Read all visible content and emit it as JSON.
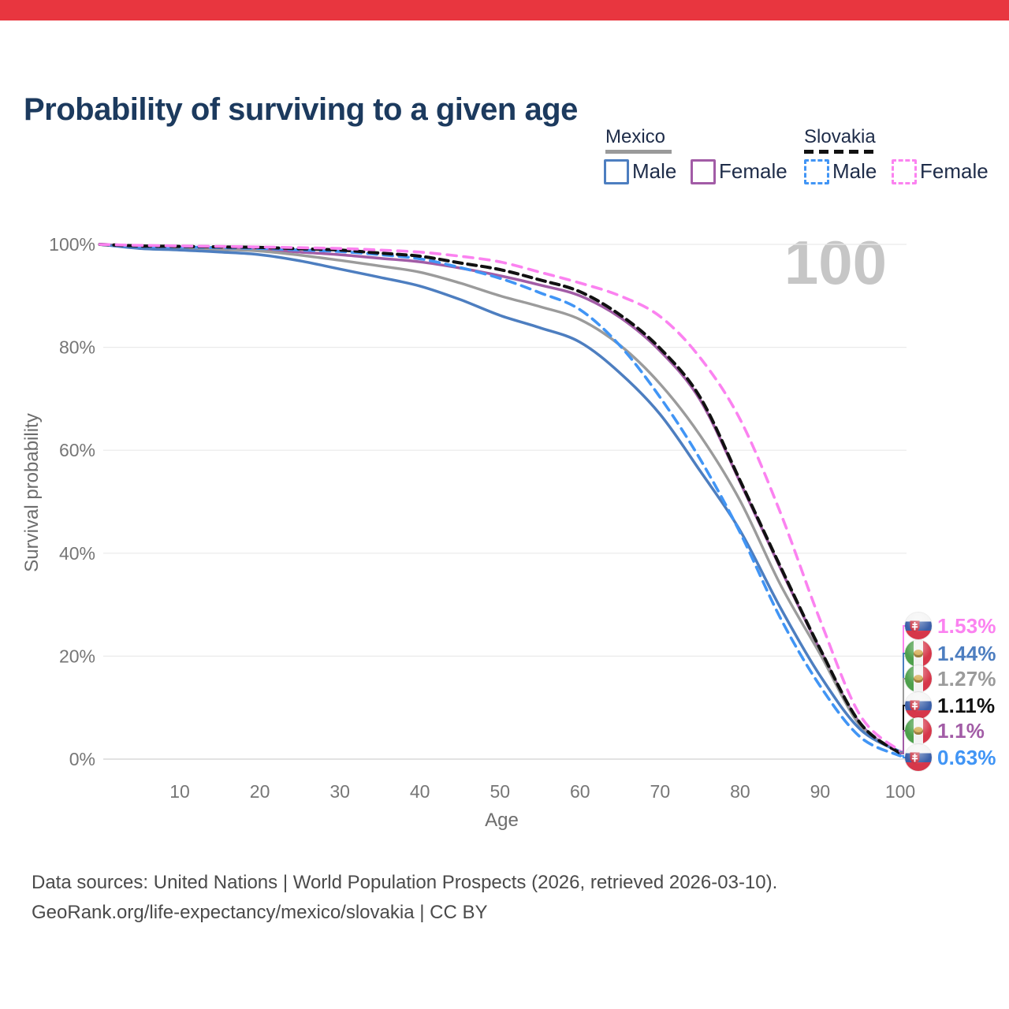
{
  "banner": {
    "color": "#e8363f"
  },
  "title": "Probability of surviving to a given age",
  "watermark": "100",
  "legend": {
    "groups": [
      {
        "country": "Mexico",
        "line_style": "solid",
        "swatch_color": "#9a9a9a",
        "items": [
          {
            "label": "Male",
            "color": "#4d7ec0",
            "dashed": false
          },
          {
            "label": "Female",
            "color": "#a25ca6",
            "dashed": false
          }
        ]
      },
      {
        "country": "Slovakia",
        "line_style": "dashed",
        "swatch_color": "#111111",
        "items": [
          {
            "label": "Male",
            "color": "#4195f5",
            "dashed": true
          },
          {
            "label": "Female",
            "color": "#fb82f0",
            "dashed": true
          }
        ]
      }
    ]
  },
  "chart_data": {
    "type": "line",
    "title": "Probability of surviving to a given age",
    "xlabel": "Age",
    "ylabel": "Survival probability",
    "xlim": [
      0,
      100
    ],
    "ylim": [
      0,
      100
    ],
    "x_ticks": [
      10,
      20,
      30,
      40,
      50,
      60,
      70,
      80,
      90,
      100
    ],
    "y_ticks": [
      0,
      20,
      40,
      60,
      80,
      100
    ],
    "y_tick_suffix": "%",
    "grid": "horizontal",
    "legend_position": "top-right",
    "series": [
      {
        "id": "mx-female",
        "name": "Mexico Female",
        "country": "Mexico",
        "sex": "Female",
        "color": "#a25ca6",
        "dashed": false,
        "dash_pattern": "",
        "stroke_width": 3.5,
        "end_value_pct": 1.1,
        "points": [
          [
            0,
            100
          ],
          [
            5,
            99.6
          ],
          [
            10,
            99.4
          ],
          [
            15,
            99.2
          ],
          [
            20,
            99.0
          ],
          [
            25,
            98.5
          ],
          [
            30,
            98.0
          ],
          [
            35,
            97.3
          ],
          [
            40,
            96.6
          ],
          [
            45,
            95.4
          ],
          [
            50,
            93.9
          ],
          [
            55,
            92.1
          ],
          [
            60,
            90.0
          ],
          [
            65,
            85.8
          ],
          [
            70,
            79.3
          ],
          [
            75,
            69.8
          ],
          [
            80,
            53.8
          ],
          [
            85,
            37.2
          ],
          [
            90,
            21.2
          ],
          [
            95,
            6.9
          ],
          [
            100,
            1.1
          ]
        ]
      },
      {
        "id": "mx-both",
        "name": "Mexico Both sexes",
        "country": "Mexico",
        "sex": "Both",
        "color": "#9b9b9b",
        "dashed": false,
        "dash_pattern": "",
        "stroke_width": 3.4,
        "end_value_pct": 1.27,
        "points": [
          [
            0,
            100
          ],
          [
            5,
            99.4
          ],
          [
            10,
            99.2
          ],
          [
            15,
            99.0
          ],
          [
            20,
            98.7
          ],
          [
            25,
            97.9
          ],
          [
            30,
            96.9
          ],
          [
            35,
            95.8
          ],
          [
            40,
            94.6
          ],
          [
            45,
            92.5
          ],
          [
            50,
            90.0
          ],
          [
            55,
            87.9
          ],
          [
            60,
            85.4
          ],
          [
            65,
            80.4
          ],
          [
            70,
            72.9
          ],
          [
            75,
            62.9
          ],
          [
            80,
            50.2
          ],
          [
            85,
            34.0
          ],
          [
            90,
            20.4
          ],
          [
            95,
            6.5
          ],
          [
            100,
            1.27
          ]
        ]
      },
      {
        "id": "mx-male",
        "name": "Mexico Male",
        "country": "Mexico",
        "sex": "Male",
        "color": "#4d7ec0",
        "dashed": false,
        "dash_pattern": "",
        "stroke_width": 3.5,
        "end_value_pct": 1.44,
        "points": [
          [
            0,
            100
          ],
          [
            5,
            99.2
          ],
          [
            10,
            98.9
          ],
          [
            15,
            98.5
          ],
          [
            20,
            98.0
          ],
          [
            25,
            96.8
          ],
          [
            30,
            95.2
          ],
          [
            35,
            93.6
          ],
          [
            40,
            91.9
          ],
          [
            45,
            89.3
          ],
          [
            50,
            86.2
          ],
          [
            55,
            83.8
          ],
          [
            60,
            81.0
          ],
          [
            65,
            75.0
          ],
          [
            70,
            67.0
          ],
          [
            75,
            56.0
          ],
          [
            80,
            44.4
          ],
          [
            85,
            29.5
          ],
          [
            90,
            16.2
          ],
          [
            95,
            5.8
          ],
          [
            100,
            1.44
          ]
        ]
      },
      {
        "id": "sk-male",
        "name": "Slovakia Male",
        "country": "Slovakia",
        "sex": "Male",
        "color": "#4195f5",
        "dashed": true,
        "dash_pattern": "12 8",
        "stroke_width": 3.6,
        "end_value_pct": 0.63,
        "points": [
          [
            0,
            100
          ],
          [
            5,
            99.6
          ],
          [
            10,
            99.5
          ],
          [
            15,
            99.35
          ],
          [
            20,
            99.2
          ],
          [
            25,
            98.9
          ],
          [
            30,
            98.6
          ],
          [
            35,
            98.0
          ],
          [
            40,
            97.2
          ],
          [
            45,
            95.5
          ],
          [
            50,
            93.4
          ],
          [
            55,
            90.6
          ],
          [
            60,
            87.3
          ],
          [
            65,
            80.3
          ],
          [
            70,
            70.3
          ],
          [
            75,
            58.3
          ],
          [
            80,
            44.0
          ],
          [
            85,
            27.5
          ],
          [
            90,
            14.2
          ],
          [
            95,
            4.3
          ],
          [
            100,
            0.63
          ]
        ]
      },
      {
        "id": "sk-both",
        "name": "Slovakia Both sexes",
        "country": "Slovakia",
        "sex": "Both",
        "color": "#111111",
        "dashed": true,
        "dash_pattern": "11 7",
        "stroke_width": 4,
        "end_value_pct": 1.11,
        "points": [
          [
            0,
            100
          ],
          [
            5,
            99.7
          ],
          [
            10,
            99.6
          ],
          [
            15,
            99.5
          ],
          [
            20,
            99.4
          ],
          [
            25,
            99.15
          ],
          [
            30,
            98.9
          ],
          [
            35,
            98.3
          ],
          [
            40,
            97.7
          ],
          [
            45,
            96.4
          ],
          [
            50,
            95.1
          ],
          [
            55,
            93.1
          ],
          [
            60,
            90.8
          ],
          [
            65,
            86.3
          ],
          [
            70,
            79.8
          ],
          [
            75,
            70.3
          ],
          [
            80,
            54.1
          ],
          [
            85,
            37.5
          ],
          [
            90,
            21.4
          ],
          [
            95,
            7.0
          ],
          [
            100,
            1.11
          ]
        ]
      },
      {
        "id": "sk-female",
        "name": "Slovakia Female",
        "country": "Slovakia",
        "sex": "Female",
        "color": "#fb82f0",
        "dashed": true,
        "dash_pattern": "12 9",
        "stroke_width": 3.6,
        "end_value_pct": 1.53,
        "points": [
          [
            0,
            100
          ],
          [
            5,
            99.8
          ],
          [
            10,
            99.7
          ],
          [
            15,
            99.6
          ],
          [
            20,
            99.5
          ],
          [
            25,
            99.35
          ],
          [
            30,
            99.2
          ],
          [
            35,
            98.9
          ],
          [
            40,
            98.5
          ],
          [
            45,
            97.7
          ],
          [
            50,
            96.6
          ],
          [
            55,
            94.6
          ],
          [
            60,
            92.5
          ],
          [
            65,
            90.0
          ],
          [
            70,
            86.0
          ],
          [
            75,
            78.0
          ],
          [
            80,
            66.0
          ],
          [
            85,
            48.0
          ],
          [
            90,
            27.0
          ],
          [
            95,
            8.5
          ],
          [
            100,
            1.53
          ]
        ]
      }
    ]
  },
  "end_labels": [
    {
      "value": "1.53%",
      "color": "#fb82f0",
      "flag": "sk",
      "series": "sk-female"
    },
    {
      "value": "1.44%",
      "color": "#4d7ec0",
      "flag": "mx",
      "series": "mx-male"
    },
    {
      "value": "1.27%",
      "color": "#9b9b9b",
      "flag": "mx",
      "series": "mx-both"
    },
    {
      "value": "1.11%",
      "color": "#111111",
      "flag": "sk",
      "series": "sk-both"
    },
    {
      "value": "1.1%",
      "color": "#a25ca6",
      "flag": "mx",
      "series": "mx-female"
    },
    {
      "value": "0.63%",
      "color": "#4195f5",
      "flag": "sk",
      "series": "sk-male"
    }
  ],
  "footer": {
    "line1": "Data sources: United Nations | World Population Prospects (2026, retrieved 2026-03-10).",
    "line2": "GeoRank.org/life-expectancy/mexico/slovakia | CC BY"
  }
}
